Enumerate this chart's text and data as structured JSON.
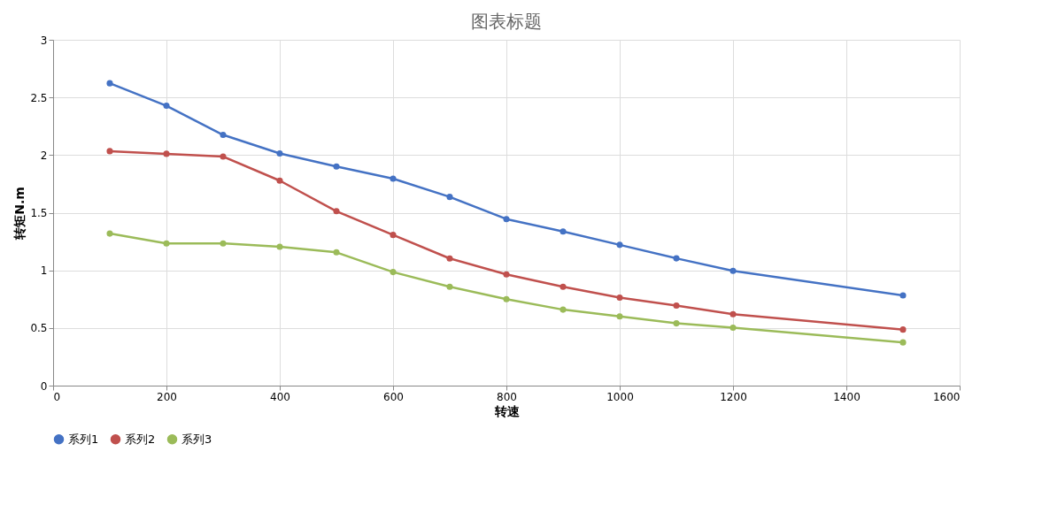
{
  "chart_data": {
    "type": "line",
    "title": "图表标题",
    "xlabel": "转速",
    "ylabel": "转矩N.m",
    "x": [
      100,
      200,
      300,
      400,
      500,
      600,
      700,
      800,
      900,
      1000,
      1100,
      1200,
      1500
    ],
    "series": [
      {
        "name": "系列1",
        "color": "#4472c4",
        "values": [
          2.623,
          2.428,
          2.175,
          2.014,
          1.901,
          1.795,
          1.637,
          1.445,
          1.337,
          1.221,
          1.104,
          0.996,
          0.782
        ]
      },
      {
        "name": "系列2",
        "color": "#c0504d",
        "values": [
          2.034,
          2.011,
          1.987,
          1.778,
          1.513,
          1.307,
          1.103,
          0.965,
          0.857,
          0.763,
          0.695,
          0.619,
          0.486
        ]
      },
      {
        "name": "系列3",
        "color": "#9bbb59",
        "values": [
          1.319,
          1.234,
          1.234,
          1.205,
          1.156,
          0.985,
          0.858,
          0.75,
          0.659,
          0.6,
          0.54,
          0.502,
          0.375
        ]
      }
    ],
    "xlim": [
      0,
      1600
    ],
    "xticks": [
      0,
      200,
      400,
      600,
      800,
      1000,
      1200,
      1400,
      1600
    ],
    "ylim": [
      0,
      3
    ],
    "yticks": [
      0,
      0.5,
      1,
      1.5,
      2,
      2.5,
      3
    ],
    "grid": true,
    "legend": "bottom",
    "marker": "circle",
    "line_style": "solid"
  }
}
